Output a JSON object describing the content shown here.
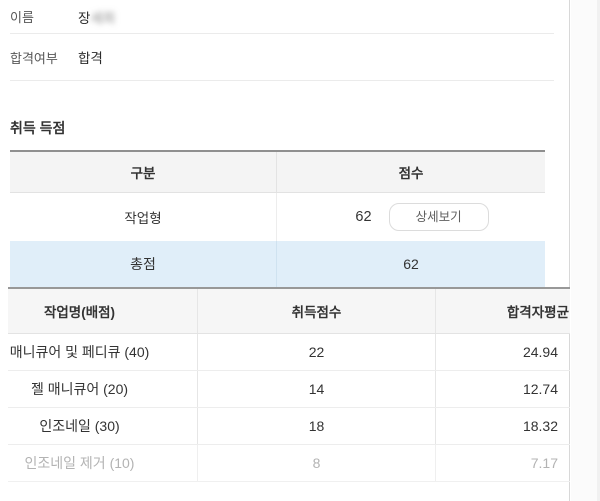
{
  "profile": {
    "name_label": "이름",
    "name_visible": "장",
    "name_masked": "세희",
    "pass_label": "합격여부",
    "pass_value": "합격"
  },
  "score_section": {
    "title": "취득 득점",
    "table": {
      "col_category": "구분",
      "col_score": "점수",
      "rows": [
        {
          "category": "작업형",
          "score": "62",
          "action_label": "상세보기"
        },
        {
          "category": "총점",
          "score": "62",
          "highlight": true
        }
      ]
    }
  },
  "detail_table": {
    "headers": [
      "작업명(배점)",
      "취득점수",
      "합격자평균"
    ],
    "rows": [
      {
        "task": "매니큐어 및 페디큐 (40)",
        "score": "22",
        "avg": "24.94"
      },
      {
        "task": "젤 매니큐어 (20)",
        "score": "14",
        "avg": "12.74"
      },
      {
        "task": "인조네일 (30)",
        "score": "18",
        "avg": "18.32"
      },
      {
        "task": "인조네일 제거 (10)",
        "score": "8",
        "avg": "7.17",
        "muted": true
      }
    ]
  },
  "colors": {
    "highlight_row": "#e0eef9",
    "header_bg": "#f4f4f4",
    "table_top_border": "#8f8f8f",
    "muted_text": "#b3b3b3",
    "panel_border": "#d8d8d8"
  }
}
